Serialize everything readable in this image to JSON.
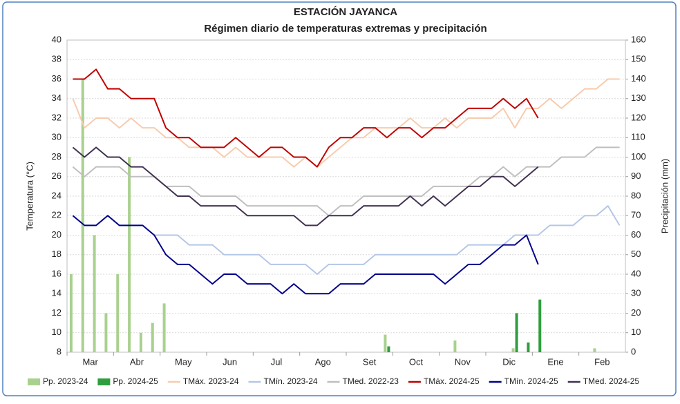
{
  "chart_data": {
    "type": "line",
    "title": "ESTACIÓN JAYANCA",
    "subtitle": "Régimen diario de temperaturas extremas y precipitación",
    "ylabel": "Temperatura (°C)",
    "y2label": "Precipitación (mm)",
    "categories": [
      null,
      "Mar",
      null,
      null,
      null,
      "Abr",
      null,
      null,
      null,
      "May",
      null,
      null,
      null,
      "Jun",
      null,
      null,
      null,
      "Jul",
      null,
      null,
      null,
      "Ago",
      null,
      null,
      null,
      "Set",
      null,
      null,
      null,
      "Oct",
      null,
      null,
      null,
      "Nov",
      null,
      null,
      null,
      "Dic",
      null,
      null,
      null,
      "Ene",
      null,
      null,
      null,
      "Feb",
      null,
      null
    ],
    "ylim": [
      8,
      40
    ],
    "yticks": [
      8,
      10,
      12,
      14,
      16,
      18,
      20,
      22,
      24,
      26,
      28,
      30,
      32,
      34,
      36,
      38,
      40
    ],
    "y2lim": [
      0,
      160
    ],
    "y2ticks": [
      0,
      10,
      20,
      30,
      40,
      50,
      60,
      70,
      80,
      90,
      100,
      110,
      120,
      130,
      140,
      150,
      160
    ],
    "grid": true,
    "series": [
      {
        "name": "Pp. 2023-24",
        "type": "bar",
        "axis": "y2",
        "color": "#a9d18e",
        "values": [
          40,
          140,
          60,
          20,
          40,
          100,
          10,
          15,
          25,
          0,
          0,
          0,
          0,
          0,
          0,
          0,
          0,
          0,
          0,
          0,
          0,
          0,
          0,
          0,
          0,
          0,
          0,
          9,
          0,
          0,
          0,
          0,
          0,
          6,
          0,
          0,
          0,
          0,
          2,
          0,
          0,
          0,
          0,
          0,
          0,
          2,
          0,
          0
        ]
      },
      {
        "name": "Pp. 2024-25",
        "type": "bar",
        "axis": "y2",
        "color": "#2e9e3e",
        "values": [
          0,
          0,
          0,
          0,
          0,
          0,
          0,
          0,
          0,
          0,
          0,
          0,
          0,
          0,
          0,
          0,
          0,
          0,
          0,
          0,
          0,
          0,
          0,
          0,
          0,
          0,
          0,
          3,
          0,
          0,
          0,
          0,
          0,
          0,
          0,
          0,
          0,
          0,
          20,
          5,
          27,
          null,
          null,
          null,
          null,
          null,
          null,
          null
        ]
      },
      {
        "name": "TMáx. 2023-24",
        "type": "line",
        "color": "#f8cbad",
        "values": [
          34,
          31,
          32,
          32,
          31,
          32,
          31,
          31,
          30,
          30,
          29,
          29,
          29,
          28,
          29,
          28,
          28,
          28,
          28,
          27,
          28,
          27,
          28,
          29,
          30,
          30,
          31,
          31,
          31,
          32,
          31,
          31,
          32,
          31,
          32,
          32,
          32,
          33,
          31,
          33,
          33,
          34,
          33,
          34,
          35,
          35,
          36,
          36
        ]
      },
      {
        "name": "TMín. 2023-24",
        "type": "line",
        "color": "#b4c7e7",
        "values": [
          22,
          21,
          21,
          22,
          21,
          21,
          21,
          20,
          20,
          20,
          19,
          19,
          19,
          18,
          18,
          18,
          18,
          17,
          17,
          17,
          17,
          16,
          17,
          17,
          17,
          17,
          18,
          18,
          18,
          18,
          18,
          18,
          18,
          18,
          19,
          19,
          19,
          19,
          20,
          20,
          20,
          21,
          21,
          21,
          22,
          22,
          23,
          21
        ]
      },
      {
        "name": "TMed. 2022-23",
        "type": "line",
        "color": "#bfbfbf",
        "values": [
          27,
          26,
          27,
          27,
          27,
          26,
          26,
          26,
          25,
          25,
          25,
          24,
          24,
          24,
          24,
          23,
          23,
          23,
          23,
          23,
          23,
          23,
          22,
          23,
          23,
          24,
          24,
          24,
          24,
          24,
          24,
          25,
          25,
          25,
          25,
          26,
          26,
          27,
          26,
          27,
          27,
          27,
          28,
          28,
          28,
          29,
          29,
          29
        ]
      },
      {
        "name": "TMáx. 2024-25",
        "type": "line",
        "color": "#c00000",
        "values": [
          36,
          36,
          37,
          35,
          35,
          34,
          34,
          34,
          31,
          30,
          30,
          29,
          29,
          29,
          30,
          29,
          28,
          29,
          29,
          28,
          28,
          27,
          29,
          30,
          30,
          31,
          31,
          30,
          31,
          31,
          30,
          31,
          31,
          32,
          33,
          33,
          33,
          34,
          33,
          34,
          32,
          null,
          null,
          null,
          null,
          null,
          null,
          null
        ]
      },
      {
        "name": "TMín. 2024-25",
        "type": "line",
        "color": "#00008b",
        "values": [
          22,
          21,
          21,
          22,
          21,
          21,
          21,
          20,
          18,
          17,
          17,
          16,
          15,
          16,
          16,
          15,
          15,
          15,
          14,
          15,
          14,
          14,
          14,
          15,
          15,
          15,
          16,
          16,
          16,
          16,
          16,
          16,
          15,
          16,
          17,
          17,
          18,
          19,
          19,
          20,
          17,
          null,
          null,
          null,
          null,
          null,
          null,
          null
        ]
      },
      {
        "name": "TMed. 2024-25",
        "type": "line",
        "color": "#403151",
        "values": [
          29,
          28,
          29,
          28,
          28,
          27,
          27,
          26,
          25,
          24,
          24,
          23,
          23,
          23,
          23,
          22,
          22,
          22,
          22,
          22,
          21,
          21,
          22,
          22,
          22,
          23,
          23,
          23,
          23,
          24,
          23,
          24,
          23,
          24,
          25,
          25,
          26,
          26,
          25,
          26,
          27,
          null,
          null,
          null,
          null,
          null,
          null,
          null
        ]
      }
    ]
  }
}
